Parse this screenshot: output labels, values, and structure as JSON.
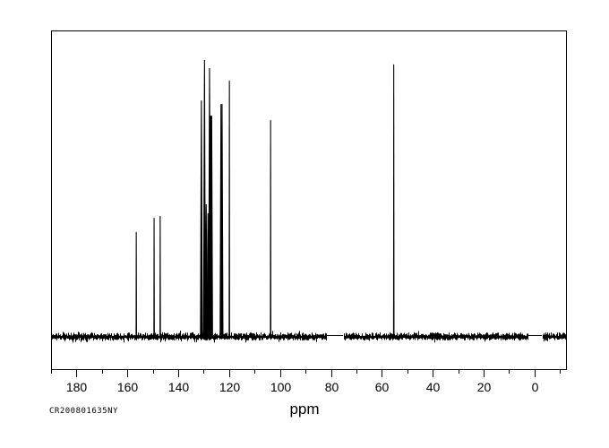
{
  "footer": {
    "id_label": "CR200801635NY"
  },
  "chart_data": {
    "type": "line",
    "subtype": "nmr-spectrum",
    "title": "",
    "xlabel": "ppm",
    "ylabel": "",
    "grid": false,
    "legend": false,
    "colors": {
      "trace": "#000000",
      "background": "#ffffff",
      "frame": "#000000"
    },
    "x_axis": {
      "min": -12.4,
      "max": 190,
      "reversed": true,
      "major_ticks": [
        180,
        160,
        140,
        120,
        100,
        80,
        60,
        40,
        20,
        0
      ],
      "major_tick_labels": [
        "180",
        "160",
        "140",
        "120",
        "100",
        "80",
        "60",
        "40",
        "20",
        "0"
      ],
      "minor_ticks": [
        190,
        170,
        150,
        130,
        110,
        90,
        70,
        50,
        30,
        10,
        -10
      ]
    },
    "peaks": [
      {
        "ppm": 156.5,
        "intensity": 0.379
      },
      {
        "ppm": 149.5,
        "intensity": 0.43
      },
      {
        "ppm": 147.1,
        "intensity": 0.437
      },
      {
        "ppm": 130.9,
        "intensity": 0.854
      },
      {
        "ppm": 129.7,
        "intensity": 1.0
      },
      {
        "ppm": 129.0,
        "intensity": 0.479
      },
      {
        "ppm": 128.3,
        "intensity": 0.447
      },
      {
        "ppm": 127.7,
        "intensity": 0.971
      },
      {
        "ppm": 127.1,
        "intensity": 0.799,
        "broad": true
      },
      {
        "ppm": 123.2,
        "intensity": 0.841
      },
      {
        "ppm": 122.8,
        "intensity": 0.841
      },
      {
        "ppm": 119.9,
        "intensity": 0.926
      },
      {
        "ppm": 103.7,
        "intensity": 0.783
      },
      {
        "ppm": 55.3,
        "intensity": 0.984
      }
    ],
    "noise_segments_ppm": [
      [
        190,
        81.6
      ],
      [
        75.2,
        2.4
      ],
      [
        -2.9,
        -12.4
      ]
    ],
    "flat_segments_ppm": [
      [
        81.6,
        75.2
      ],
      [
        2.4,
        -2.9
      ]
    ]
  }
}
